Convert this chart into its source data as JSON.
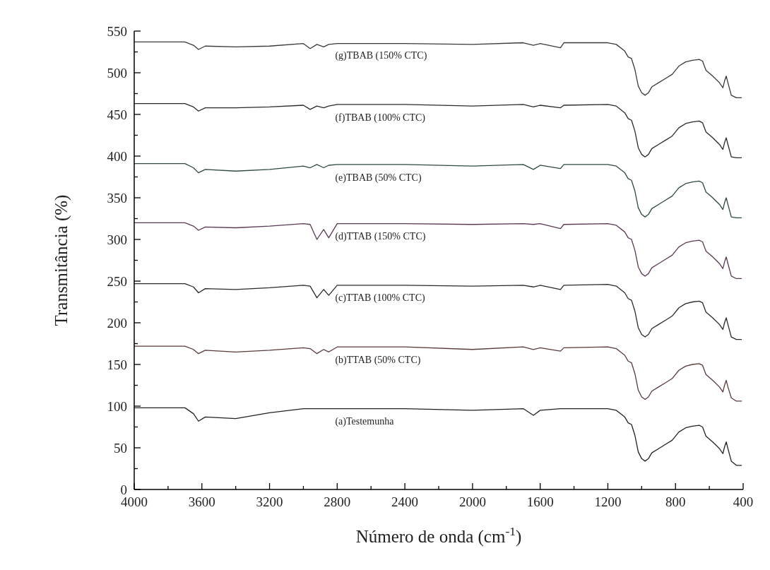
{
  "chart_data": {
    "type": "line",
    "xlabel": "Número de onda (cm$^{-1}$)",
    "ylabel": "Transmitância (%)",
    "xlim": [
      4000,
      400
    ],
    "ylim": [
      0,
      550
    ],
    "xticks": [
      4000,
      {
        "value": 3800,
        "label": null
      },
      3600,
      {
        "value": 3400,
        "label": null
      },
      3200,
      {
        "value": 3000,
        "label": null
      },
      2800,
      {
        "value": 2600,
        "label": null
      },
      2400,
      {
        "value": 2200,
        "label": null
      },
      2000,
      {
        "value": 1800,
        "label": null
      },
      1600,
      {
        "value": 1400,
        "label": null
      },
      1200,
      {
        "value": 1000,
        "label": null
      },
      800,
      {
        "value": 600,
        "label": null
      },
      400
    ],
    "yticks": [
      0,
      {
        "value": 25,
        "label": null
      },
      50,
      {
        "value": 75,
        "label": null
      },
      100,
      {
        "value": 125,
        "label": null
      },
      150,
      {
        "value": 175,
        "label": null
      },
      200,
      {
        "value": 225,
        "label": null
      },
      250,
      {
        "value": 275,
        "label": null
      },
      300,
      {
        "value": 325,
        "label": null
      },
      350,
      {
        "value": 375,
        "label": null
      },
      400,
      {
        "value": 425,
        "label": null
      },
      450,
      {
        "value": 475,
        "label": null
      },
      500,
      {
        "value": 525,
        "label": null
      },
      550
    ],
    "grid": false,
    "marker": "none",
    "line_style": "solid",
    "x": [
      4000,
      3700,
      3650,
      3620,
      3580,
      3400,
      3200,
      3000,
      2960,
      2920,
      2880,
      2850,
      2800,
      2400,
      2000,
      1700,
      1640,
      1600,
      1480,
      1460,
      1200,
      1150,
      1100,
      1080,
      1060,
      1040,
      1020,
      1000,
      980,
      960,
      940,
      900,
      860,
      820,
      780,
      740,
      700,
      660,
      640,
      620,
      580,
      540,
      520,
      510,
      500,
      490,
      470,
      440,
      410
    ],
    "series": [
      {
        "name": "(a)Testemunha",
        "color": "#222222",
        "values": [
          98,
          98,
          91,
          82,
          87,
          85,
          92,
          97,
          97,
          97,
          97,
          97,
          97,
          97,
          95,
          97,
          89,
          95,
          97,
          97,
          97,
          95,
          87,
          80,
          78,
          65,
          45,
          37,
          34,
          37,
          44,
          49,
          54,
          59,
          69,
          74,
          76,
          77,
          75,
          64,
          57,
          49,
          43,
          51,
          57,
          49,
          34,
          29,
          29
        ]
      },
      {
        "name": "(b)TTAB (50% CTC)",
        "color": "#5a3a3a",
        "values": [
          172,
          172,
          168,
          163,
          167,
          165,
          167,
          170,
          169,
          163,
          168,
          165,
          171,
          171,
          168,
          171,
          168,
          170,
          166,
          170,
          171,
          169,
          161,
          154,
          152,
          139,
          119,
          111,
          108,
          111,
          118,
          123,
          128,
          133,
          143,
          148,
          150,
          151,
          149,
          138,
          131,
          123,
          117,
          125,
          131,
          123,
          110,
          106,
          106
        ]
      },
      {
        "name": "(c)TTAB (100% CTC)",
        "color": "#2a2a2a",
        "values": [
          247,
          247,
          243,
          236,
          241,
          240,
          242,
          245,
          244,
          230,
          240,
          233,
          245,
          245,
          244,
          245,
          243,
          245,
          240,
          245,
          246,
          244,
          236,
          229,
          227,
          214,
          194,
          186,
          183,
          186,
          193,
          198,
          203,
          208,
          218,
          223,
          225,
          226,
          224,
          213,
          206,
          198,
          192,
          200,
          206,
          198,
          183,
          180,
          180
        ]
      },
      {
        "name": "(d)TTAB (150% CTC)",
        "color": "#5a3a55",
        "values": [
          320,
          320,
          316,
          311,
          315,
          314,
          316,
          319,
          318,
          300,
          312,
          302,
          319,
          319,
          318,
          319,
          318,
          319,
          313,
          318,
          319,
          317,
          309,
          302,
          300,
          287,
          267,
          259,
          256,
          259,
          266,
          271,
          276,
          281,
          291,
          296,
          298,
          299,
          297,
          286,
          279,
          271,
          265,
          273,
          279,
          271,
          256,
          253,
          253
        ]
      },
      {
        "name": "(e)TBAB (50% CTC)",
        "color": "#2f4a3f",
        "values": [
          391,
          391,
          386,
          380,
          384,
          382,
          384,
          388,
          386,
          390,
          386,
          389,
          390,
          390,
          388,
          390,
          384,
          389,
          385,
          390,
          390,
          388,
          380,
          373,
          371,
          358,
          338,
          330,
          327,
          330,
          337,
          342,
          347,
          352,
          362,
          367,
          369,
          370,
          368,
          357,
          350,
          342,
          336,
          344,
          350,
          342,
          327,
          326,
          326
        ]
      },
      {
        "name": "(f)TBAB (100% CTC)",
        "color": "#2a2a2a",
        "values": [
          463,
          463,
          459,
          454,
          458,
          458,
          459,
          461,
          456,
          460,
          458,
          460,
          462,
          462,
          460,
          462,
          459,
          461,
          458,
          461,
          462,
          460,
          452,
          445,
          443,
          430,
          410,
          402,
          399,
          402,
          409,
          414,
          419,
          424,
          434,
          439,
          441,
          442,
          440,
          429,
          422,
          414,
          408,
          416,
          422,
          414,
          399,
          398,
          398
        ]
      },
      {
        "name": "(g)TBAB (150% CTC)",
        "color": "#3a3a3a",
        "values": [
          537,
          537,
          533,
          528,
          532,
          531,
          532,
          535,
          529,
          534,
          531,
          534,
          535,
          535,
          534,
          536,
          533,
          535,
          530,
          536,
          536,
          534,
          526,
          519,
          517,
          504,
          484,
          476,
          473,
          476,
          483,
          488,
          493,
          498,
          508,
          513,
          515,
          516,
          514,
          503,
          496,
          488,
          482,
          490,
          496,
          488,
          473,
          470,
          470
        ]
      }
    ]
  }
}
